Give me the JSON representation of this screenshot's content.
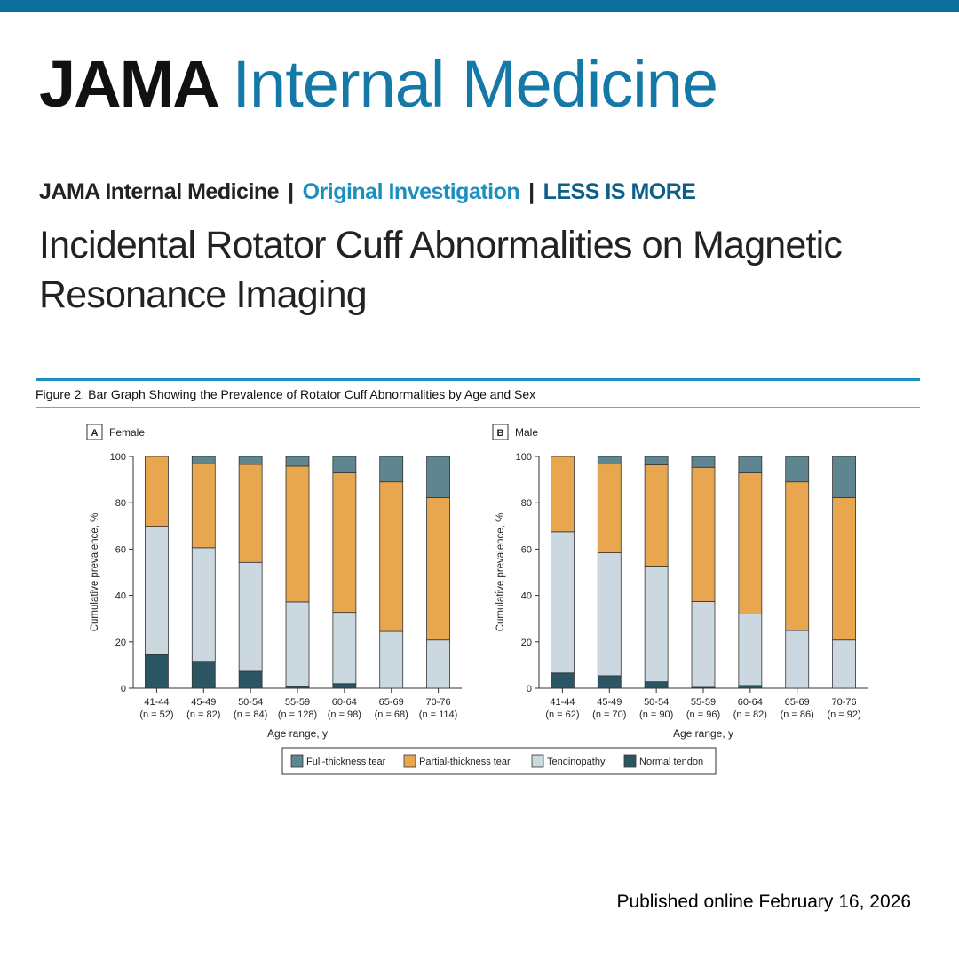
{
  "colors": {
    "top_bar": "#0a6f9a",
    "brand_blue": "#1479a6",
    "section_blue": "#1a8fc0",
    "series_blue": "#0e5f88"
  },
  "header": {
    "brand_journal": "JAMA",
    "brand_specialty": "Internal Medicine",
    "kicker_journal": "JAMA Internal Medicine",
    "kicker_separator": "|",
    "kicker_type": "Original Investigation",
    "kicker_series": "LESS IS MORE",
    "headline": "Incidental Rotator Cuff Abnormalities on Magnetic Resonance Imaging"
  },
  "footer": {
    "published": "Published online February 16, 2026"
  },
  "chart_data": {
    "type": "bar",
    "stacked": true,
    "figure_title": "Figure 2. Bar Graph Showing the Prevalence of Rotator Cuff Abnormalities by Age and Sex",
    "ylabel": "Cumulative prevalence, %",
    "xlabel": "Age range, y",
    "ylim": [
      0,
      100
    ],
    "yticks": [
      0,
      20,
      40,
      60,
      80,
      100
    ],
    "legend_position": "bottom",
    "series_order_bottom_to_top": [
      "Normal tendon",
      "Tendinopathy",
      "Partial-thickness tear",
      "Full-thickness tear"
    ],
    "legend": [
      {
        "name": "Full-thickness tear",
        "color": "#5f8591"
      },
      {
        "name": "Partial-thickness tear",
        "color": "#e8a74f"
      },
      {
        "name": "Tendinopathy",
        "color": "#cbd8e0"
      },
      {
        "name": "Normal tendon",
        "color": "#2b5563"
      }
    ],
    "panels": [
      {
        "letter": "A",
        "label": "Female",
        "categories": [
          "41-44",
          "45-49",
          "50-54",
          "55-59",
          "60-64",
          "65-69",
          "70-76"
        ],
        "n_labels": [
          "(n = 52)",
          "(n = 82)",
          "(n = 84)",
          "(n = 128)",
          "(n = 98)",
          "(n = 68)",
          "(n = 114)"
        ],
        "series": [
          {
            "name": "Normal tendon",
            "values": [
              14.4,
              11.6,
              7.3,
              0.8,
              2.0,
              0.0,
              0.0
            ]
          },
          {
            "name": "Tendinopathy",
            "values": [
              55.5,
              49.0,
              47.0,
              36.4,
              30.7,
              24.5,
              20.8
            ]
          },
          {
            "name": "Partial-thickness tear",
            "values": [
              30.1,
              36.2,
              42.3,
              58.6,
              60.2,
              64.5,
              61.4
            ]
          },
          {
            "name": "Full-thickness tear",
            "values": [
              0.0,
              3.2,
              3.4,
              4.2,
              7.1,
              11.0,
              17.8
            ]
          }
        ]
      },
      {
        "letter": "B",
        "label": "Male",
        "categories": [
          "41-44",
          "45-49",
          "50-54",
          "55-59",
          "60-64",
          "65-69",
          "70-76"
        ],
        "n_labels": [
          "(n = 62)",
          "(n = 70)",
          "(n = 90)",
          "(n = 96)",
          "(n = 82)",
          "(n = 86)",
          "(n = 92)"
        ],
        "series": [
          {
            "name": "Normal tendon",
            "values": [
              6.6,
              5.4,
              2.8,
              0.4,
              1.2,
              0.0,
              0.0
            ]
          },
          {
            "name": "Tendinopathy",
            "values": [
              60.9,
              53.0,
              49.9,
              37.0,
              30.8,
              24.9,
              20.8
            ]
          },
          {
            "name": "Partial-thickness tear",
            "values": [
              32.5,
              38.3,
              43.7,
              57.9,
              60.9,
              64.1,
              61.4
            ]
          },
          {
            "name": "Full-thickness tear",
            "values": [
              0.0,
              3.3,
              3.6,
              4.7,
              7.1,
              11.0,
              17.8
            ]
          }
        ]
      }
    ]
  }
}
